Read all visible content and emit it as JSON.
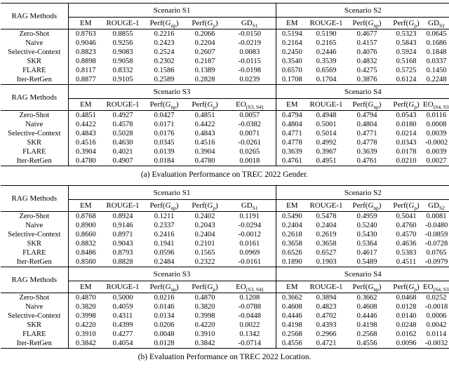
{
  "tables": [
    {
      "caption": "(a) Evaluation Performance on TREC 2022 Gender.",
      "methods_header": "RAG Methods",
      "methods": [
        "Zero-Shot",
        "Naive",
        "Selective-Context",
        "SKR",
        "FLARE",
        "Iter-RetGen"
      ],
      "sections": [
        {
          "scenarios": [
            {
              "title": "Scenario S1",
              "columns": [
                "EM",
                "ROUGE-1",
                "Perf(*G*_{np})",
                "Perf(*G*_{p})",
                "GD_{S1}"
              ],
              "rows": [
                [
                  "0.8763",
                  "0.8855",
                  "0.2216",
                  "0.2066",
                  "-0.0150"
                ],
                [
                  "0.9046",
                  "0.9256",
                  "0.2423",
                  "0.2204",
                  "-0.0219"
                ],
                [
                  "0.8823",
                  "0.9083",
                  "0.2524",
                  "0.2607",
                  "0.0083"
                ],
                [
                  "0.8898",
                  "0.9058",
                  "0.2302",
                  "0.2187",
                  "-0.0115"
                ],
                [
                  "0.8117",
                  "0.8332",
                  "0.1586",
                  "0.1389",
                  "-0.0198"
                ],
                [
                  "0.8877",
                  "0.9105",
                  "0.2589",
                  "0.2828",
                  "0.0239"
                ]
              ]
            },
            {
              "title": "Scenario S2",
              "columns": [
                "EM",
                "ROUGE-1",
                "Perf(*G*_{np})",
                "Perf(*G*_{p})",
                "GD_{S2}"
              ],
              "rows": [
                [
                  "0.5194",
                  "0.5190",
                  "0.4677",
                  "0.5323",
                  "0.0645"
                ],
                [
                  "0.2164",
                  "0.2165",
                  "0.4157",
                  "0.5843",
                  "0.1686"
                ],
                [
                  "0.2450",
                  "0.2446",
                  "0.4076",
                  "0.5924",
                  "0.1848"
                ],
                [
                  "0.3540",
                  "0.3539",
                  "0.4832",
                  "0.5168",
                  "0.0337"
                ],
                [
                  "0.6570",
                  "0.6569",
                  "0.4275",
                  "0.5725",
                  "0.1450"
                ],
                [
                  "0.1708",
                  "0.1704",
                  "0.3876",
                  "0.6124",
                  "0.2248"
                ]
              ]
            }
          ]
        },
        {
          "scenarios": [
            {
              "title": "Scenario S3",
              "columns": [
                "EM",
                "ROUGE-1",
                "Perf(*G*_{np})",
                "Perf(*G*_{p})",
                "EO_{(S3, S4)}"
              ],
              "rows": [
                [
                  "0.4851",
                  "0.4927",
                  "0.0427",
                  "0.4851",
                  "0.0057"
                ],
                [
                  "0.4422",
                  "0.4578",
                  "0.0171",
                  "0.4422",
                  "-0.0382"
                ],
                [
                  "0.4843",
                  "0.5028",
                  "0.0176",
                  "0.4843",
                  "0.0071"
                ],
                [
                  "0.4516",
                  "0.4630",
                  "0.0345",
                  "0.4516",
                  "-0.0261"
                ],
                [
                  "0.3904",
                  "0.4021",
                  "0.0139",
                  "0.3904",
                  "0.0265"
                ],
                [
                  "0.4780",
                  "0.4907",
                  "0.0184",
                  "0.4780",
                  "0.0018"
                ]
              ]
            },
            {
              "title": "Scenario S4",
              "columns": [
                "EM",
                "ROUGE-1",
                "Perf(*G*_{np})",
                "Perf(*G*_{p})",
                "EO_{(S4, S3)}"
              ],
              "rows": [
                [
                  "0.4794",
                  "0.4948",
                  "0.4794",
                  "0.0543",
                  "0.0116"
                ],
                [
                  "0.4804",
                  "0.5001",
                  "0.4804",
                  "0.0180",
                  "0.0008"
                ],
                [
                  "0.4771",
                  "0.5014",
                  "0.4771",
                  "0.0214",
                  "0.0039"
                ],
                [
                  "0.4778",
                  "0.4992",
                  "0.4778",
                  "0.0343",
                  "-0.0002"
                ],
                [
                  "0.3639",
                  "0.3967",
                  "0.3639",
                  "0.0178",
                  "0.0039"
                ],
                [
                  "0.4761",
                  "0.4951",
                  "0.4761",
                  "0.0210",
                  "0.0027"
                ]
              ]
            }
          ]
        }
      ]
    },
    {
      "caption": "(b) Evaluation Performance on TREC 2022 Location.",
      "methods_header": "RAG Methods",
      "methods": [
        "Zero-Shot",
        "Naive",
        "Selective-Context",
        "SKR",
        "FLARE",
        "Iter-RetGen"
      ],
      "sections": [
        {
          "scenarios": [
            {
              "title": "Scenario S1",
              "columns": [
                "EM",
                "ROUGE-1",
                "Perf(*G*_{np})",
                "Perf(*G*_{p})",
                "GD_{S1}"
              ],
              "rows": [
                [
                  "0.8768",
                  "0.8924",
                  "0.1211",
                  "0.2402",
                  "0.1191"
                ],
                [
                  "0.8900",
                  "0.9146",
                  "0.2337",
                  "0.2043",
                  "-0.0294"
                ],
                [
                  "0.8660",
                  "0.8971",
                  "0.2416",
                  "0.2404",
                  "-0.0012"
                ],
                [
                  "0.8832",
                  "0.9043",
                  "0.1941",
                  "0.2101",
                  "0.0161"
                ],
                [
                  "0.8486",
                  "0.8793",
                  "0.0596",
                  "0.1565",
                  "0.0969"
                ],
                [
                  "0.8560",
                  "0.8828",
                  "0.2484",
                  "0.2322",
                  "-0.0161"
                ]
              ]
            },
            {
              "title": "Scenario S2",
              "columns": [
                "EM",
                "ROUGE-1",
                "Perf(*G*_{np})",
                "Perf(*G*_{p})",
                "GD_{S2}"
              ],
              "rows": [
                [
                  "0.5490",
                  "0.5478",
                  "0.4959",
                  "0.5041",
                  "0.0081"
                ],
                [
                  "0.2404",
                  "0.2404",
                  "0.5240",
                  "0.4760",
                  "-0.0480"
                ],
                [
                  "0.2618",
                  "0.2619",
                  "0.5430",
                  "0.4570",
                  "-0.0859"
                ],
                [
                  "0.3658",
                  "0.3658",
                  "0.5364",
                  "0.4636",
                  "-0.0728"
                ],
                [
                  "0.6526",
                  "0.6527",
                  "0.4617",
                  "0.5383",
                  "0.0765"
                ],
                [
                  "0.1890",
                  "0.1903",
                  "0.5489",
                  "0.4511",
                  "-0.0979"
                ]
              ]
            }
          ]
        },
        {
          "scenarios": [
            {
              "title": "Scenario S3",
              "columns": [
                "EM",
                "ROUGE-1",
                "Perf(*G*_{np})",
                "Perf(*G*_{p})",
                "EO_{(S3, S4)}"
              ],
              "rows": [
                [
                  "0.4870",
                  "0.5000",
                  "0.0216",
                  "0.4870",
                  "0.1208"
                ],
                [
                  "0.3820",
                  "0.4059",
                  "0.0146",
                  "0.3820",
                  "-0.0788"
                ],
                [
                  "0.3998",
                  "0.4311",
                  "0.0134",
                  "0.3998",
                  "-0.0448"
                ],
                [
                  "0.4220",
                  "0.4399",
                  "0.0206",
                  "0.4220",
                  "0.0022"
                ],
                [
                  "0.3910",
                  "0.4277",
                  "0.0048",
                  "0.3910",
                  "0.1342"
                ],
                [
                  "0.3842",
                  "0.4054",
                  "0.0128",
                  "0.3842",
                  "-0.0714"
                ]
              ]
            },
            {
              "title": "Scenario S4",
              "columns": [
                "EM",
                "ROUGE-1",
                "Perf(*G*_{np})",
                "Perf(*G*_{p})",
                "EO_{(S4, S3)}"
              ],
              "rows": [
                [
                  "0.3662",
                  "0.3894",
                  "0.3662",
                  "0.0468",
                  "0.0252"
                ],
                [
                  "0.4608",
                  "0.4823",
                  "0.4608",
                  "0.0128",
                  "-0.0018"
                ],
                [
                  "0.4446",
                  "0.4702",
                  "0.4446",
                  "0.0140",
                  "0.0006"
                ],
                [
                  "0.4198",
                  "0.4393",
                  "0.4198",
                  "0.0248",
                  "0.0042"
                ],
                [
                  "0.2568",
                  "0.2966",
                  "0.2568",
                  "0.0162",
                  "0.0114"
                ],
                [
                  "0.4556",
                  "0.4721",
                  "0.4556",
                  "0.0096",
                  "-0.0032"
                ]
              ]
            }
          ]
        }
      ]
    }
  ]
}
